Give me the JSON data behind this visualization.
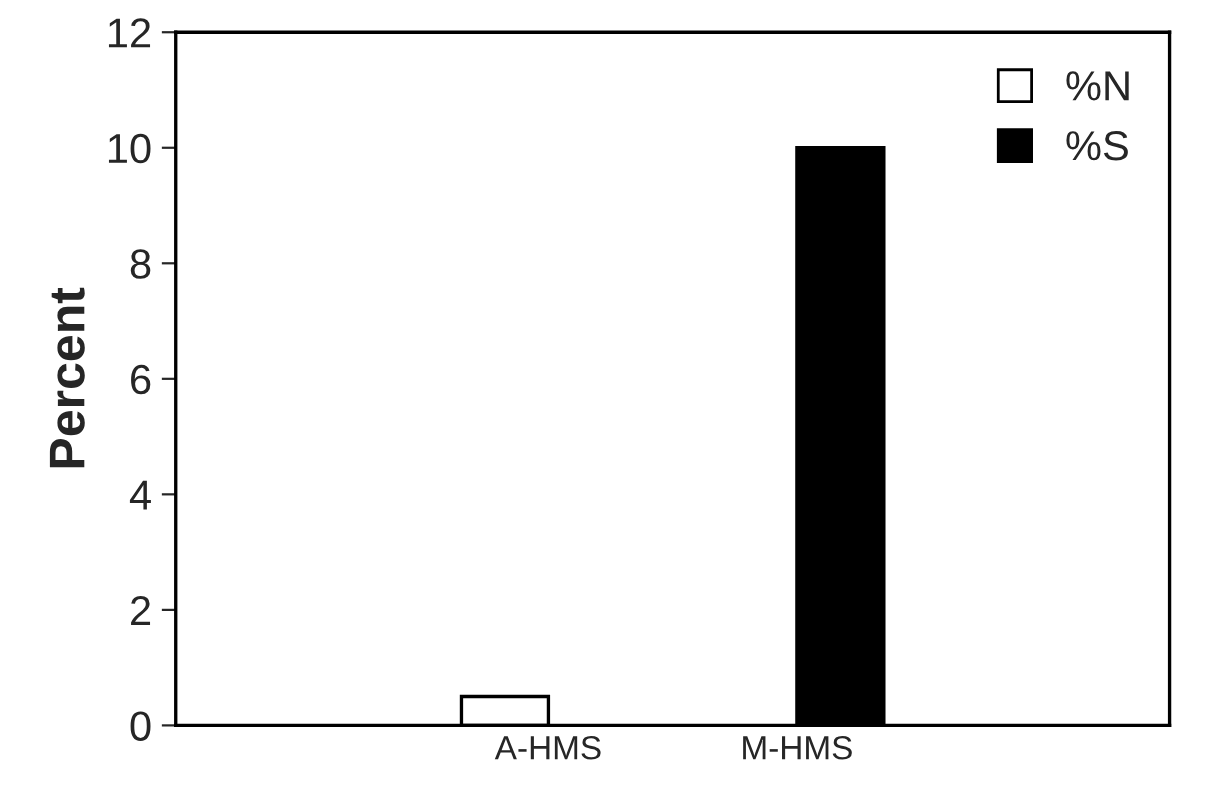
{
  "chart_data": {
    "type": "bar",
    "categories": [
      "A-HMS",
      "M-HMS"
    ],
    "ylabel": "Percent",
    "series": [
      {
        "name": "%N",
        "color": "#ffffff",
        "values": [
          0.5,
          null
        ]
      },
      {
        "name": "%S",
        "color": "#000000",
        "values": [
          null,
          10
        ]
      }
    ],
    "ylim": [
      0,
      12
    ],
    "yticks": [
      0,
      2,
      4,
      6,
      8,
      10,
      12
    ],
    "grid": false,
    "legend": "top right"
  }
}
